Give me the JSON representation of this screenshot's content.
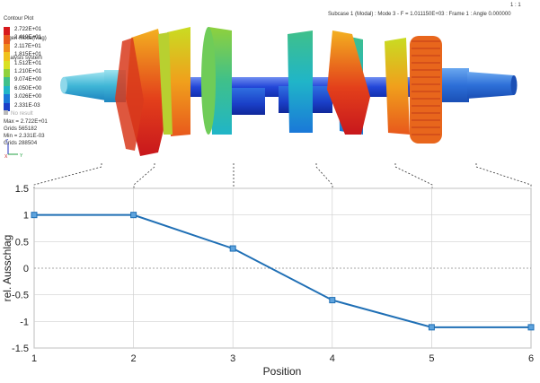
{
  "viewer": {
    "title_lines": [
      "Contour Plot",
      "Eigen Mode(Mag)",
      "Analysis system"
    ],
    "legend_values": [
      "2.722E+01",
      "2.419E+01",
      "2.117E+01",
      "1.815E+01",
      "1.512E+01",
      "1.210E+01",
      "9.074E+00",
      "6.050E+00",
      "3.026E+00",
      "2.331E-03"
    ],
    "legend_colors": [
      "#d7191c",
      "#e8581c",
      "#f08c1c",
      "#f0c21c",
      "#d9e021",
      "#8fd13c",
      "#3fc08a",
      "#20b5c8",
      "#1a78d8",
      "#1a3fc8"
    ],
    "no_result_label": "No result",
    "max_text": "Max = 2.722E+01",
    "max_grids": "Grids 565182",
    "min_text": "Min = 2.331E-03",
    "min_grids": "Grids 288504",
    "subcase_text": "Subcase 1 (Modal) : Mode 3 - F = 1.011150E+03 : Frame 1 : Angle 0.000000",
    "scale_text": "1 : 1",
    "axis_triad": {
      "z": "Z",
      "x": "X",
      "y": "Y"
    }
  },
  "chart_data": {
    "type": "line",
    "x": [
      1,
      2,
      3,
      4,
      5,
      6
    ],
    "series": [
      {
        "values": [
          1.0,
          1.0,
          0.37,
          -0.6,
          -1.11,
          -1.11
        ],
        "color": "#1f6fb5"
      }
    ],
    "xlabel": "Position",
    "ylabel": "rel. Ausschlag",
    "xlim": [
      1,
      6
    ],
    "ylim": [
      -1.5,
      1.5
    ],
    "xticks": [
      "1",
      "2",
      "3",
      "4",
      "5",
      "6"
    ],
    "yticks": [
      "1.5",
      "1",
      "0.5",
      "0",
      "-0.5",
      "-1",
      "-1.5"
    ],
    "grid": true,
    "zero_line": "dashed"
  }
}
